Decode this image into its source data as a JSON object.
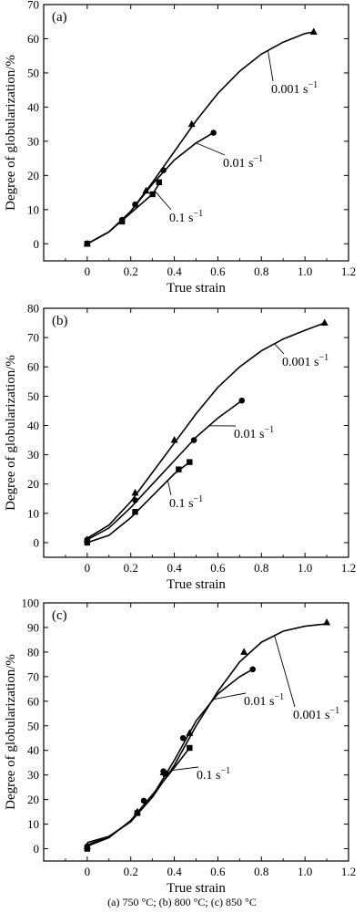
{
  "caption": "(a) 750 °C; (b) 800 °C; (c) 850 °C",
  "chart_data": [
    {
      "type": "line",
      "panel_label": "(a)",
      "xlabel": "True strain",
      "ylabel": "Degree of globularization/%",
      "xlim": [
        -0.2,
        1.2
      ],
      "ylim": [
        -5,
        70
      ],
      "xticks": [
        0,
        0.2,
        0.4,
        0.6,
        0.8,
        1.0,
        1.2
      ],
      "xtick_labels": [
        "0",
        "0.2",
        "0.4",
        "0.6",
        "0.8",
        "1.0",
        "1.2"
      ],
      "yticks": [
        0,
        10,
        20,
        30,
        40,
        50,
        60,
        70
      ],
      "ytick_labels": [
        "0",
        "10",
        "20",
        "30",
        "40",
        "50",
        "60",
        "70"
      ],
      "series": [
        {
          "name": "0.001 s⁻¹",
          "marker": "triangle",
          "x": [
            0,
            0.27,
            0.48,
            1.04
          ],
          "y": [
            0,
            15.5,
            35,
            62
          ],
          "curve_x": [
            0,
            0.1,
            0.2,
            0.3,
            0.4,
            0.5,
            0.6,
            0.7,
            0.8,
            0.9,
            1.0,
            1.04
          ],
          "curve_y": [
            0,
            3.5,
            9.5,
            18,
            27,
            36,
            44,
            50.5,
            55.5,
            59,
            61.5,
            62
          ]
        },
        {
          "name": "0.01 s⁻¹",
          "marker": "circle",
          "x": [
            0,
            0.16,
            0.22,
            0.35,
            0.58
          ],
          "y": [
            0,
            7,
            11.5,
            21.5,
            32.5
          ],
          "curve_x": [
            0,
            0.1,
            0.2,
            0.3,
            0.4,
            0.5,
            0.58
          ],
          "curve_y": [
            0,
            3.5,
            9.5,
            17.5,
            24.5,
            29.5,
            32.5
          ]
        },
        {
          "name": "0.1 s⁻¹",
          "marker": "square",
          "x": [
            0,
            0.16,
            0.3,
            0.33
          ],
          "y": [
            0,
            6.5,
            14.5,
            18
          ],
          "curve_x": [
            0,
            0.1,
            0.2,
            0.3,
            0.33
          ],
          "curve_y": [
            0,
            3.5,
            9,
            14.5,
            17.5
          ]
        }
      ],
      "annotations": [
        {
          "text": "0.001 s",
          "sup": "−1",
          "series": 0
        },
        {
          "text": "0.01 s",
          "sup": "−1",
          "series": 1
        },
        {
          "text": "0.1 s",
          "sup": "−1",
          "series": 2
        }
      ]
    },
    {
      "type": "line",
      "panel_label": "(b)",
      "xlabel": "True strain",
      "ylabel": "Degree of globularization/%",
      "xlim": [
        -0.2,
        1.2
      ],
      "ylim": [
        -5,
        80
      ],
      "xticks": [
        0,
        0.2,
        0.4,
        0.6,
        0.8,
        1.0,
        1.2
      ],
      "xtick_labels": [
        "0",
        "0.2",
        "0.4",
        "0.6",
        "0.8",
        "1.0",
        "1.2"
      ],
      "yticks": [
        0,
        10,
        20,
        30,
        40,
        50,
        60,
        70,
        80
      ],
      "ytick_labels": [
        "0",
        "10",
        "20",
        "30",
        "40",
        "50",
        "60",
        "70",
        "80"
      ],
      "series": [
        {
          "name": "0.001 s⁻¹",
          "marker": "triangle",
          "x": [
            0,
            0.22,
            0.4,
            1.09
          ],
          "y": [
            1,
            17,
            35,
            75
          ],
          "curve_x": [
            0,
            0.1,
            0.2,
            0.3,
            0.4,
            0.5,
            0.6,
            0.7,
            0.8,
            0.9,
            1.0,
            1.09
          ],
          "curve_y": [
            1.5,
            6,
            14,
            24,
            34,
            44,
            53,
            60,
            65.5,
            69.5,
            72.5,
            75
          ]
        },
        {
          "name": "0.01 s⁻¹",
          "marker": "circle",
          "x": [
            0,
            0.22,
            0.49,
            0.71
          ],
          "y": [
            1,
            14.5,
            35,
            48.5
          ],
          "curve_x": [
            0,
            0.1,
            0.2,
            0.3,
            0.4,
            0.5,
            0.6,
            0.71
          ],
          "curve_y": [
            1,
            5,
            12,
            20,
            28,
            36,
            42.5,
            48.5
          ]
        },
        {
          "name": "0.1 s⁻¹",
          "marker": "square",
          "x": [
            0,
            0.22,
            0.42,
            0.47
          ],
          "y": [
            0,
            10.5,
            25,
            27.5
          ],
          "curve_x": [
            0,
            0.1,
            0.2,
            0.3,
            0.4,
            0.47
          ],
          "curve_y": [
            0,
            2.5,
            8.5,
            16,
            23.5,
            27.5
          ]
        }
      ],
      "annotations": [
        {
          "text": "0.001 s",
          "sup": "−1",
          "series": 0
        },
        {
          "text": "0.01 s",
          "sup": "−1",
          "series": 1
        },
        {
          "text": "0.1 s",
          "sup": "−1",
          "series": 2
        }
      ]
    },
    {
      "type": "line",
      "panel_label": "(c)",
      "xlabel": "True strain",
      "ylabel": "Degree of globularization/%",
      "xlim": [
        -0.2,
        1.2
      ],
      "ylim": [
        -5,
        100
      ],
      "xticks": [
        0,
        0.2,
        0.4,
        0.6,
        0.8,
        1.0,
        1.2
      ],
      "xtick_labels": [
        "0",
        "0.2",
        "0.4",
        "0.6",
        "0.8",
        "1.0",
        "1.2"
      ],
      "yticks": [
        0,
        10,
        20,
        30,
        40,
        50,
        60,
        70,
        80,
        90,
        100
      ],
      "ytick_labels": [
        "0",
        "10",
        "20",
        "30",
        "40",
        "50",
        "60",
        "70",
        "80",
        "90",
        "100"
      ],
      "series": [
        {
          "name": "0.001 s⁻¹",
          "marker": "triangle",
          "x": [
            0,
            0.23,
            0.35,
            0.47,
            0.72,
            1.1
          ],
          "y": [
            1,
            15,
            31,
            47,
            80,
            92
          ],
          "curve_x": [
            0,
            0.1,
            0.2,
            0.3,
            0.4,
            0.5,
            0.6,
            0.7,
            0.8,
            0.9,
            1.0,
            1.1
          ],
          "curve_y": [
            2.5,
            5,
            11,
            21,
            34,
            50,
            64,
            76,
            84,
            88.5,
            90.5,
            91.5
          ]
        },
        {
          "name": "0.01 s⁻¹",
          "marker": "circle",
          "x": [
            0,
            0.26,
            0.35,
            0.44,
            0.76
          ],
          "y": [
            1,
            19.5,
            31.5,
            45,
            73
          ],
          "curve_x": [
            0,
            0.1,
            0.2,
            0.3,
            0.4,
            0.5,
            0.6,
            0.7,
            0.76
          ],
          "curve_y": [
            1.5,
            5,
            11,
            21.5,
            36,
            52,
            63,
            70,
            73
          ]
        },
        {
          "name": "0.1 s⁻¹",
          "marker": "square",
          "x": [
            0,
            0.23,
            0.36,
            0.47
          ],
          "y": [
            0,
            14.5,
            30.5,
            41
          ],
          "curve_x": [
            0,
            0.1,
            0.2,
            0.3,
            0.4,
            0.47
          ],
          "curve_y": [
            1,
            4.5,
            11.5,
            22,
            33,
            41
          ]
        }
      ],
      "annotations": [
        {
          "text": "0.001 s",
          "sup": "−1",
          "series": 0
        },
        {
          "text": "0.01 s",
          "sup": "−1",
          "series": 1
        },
        {
          "text": "0.1 s",
          "sup": "−1",
          "series": 2
        }
      ]
    }
  ]
}
